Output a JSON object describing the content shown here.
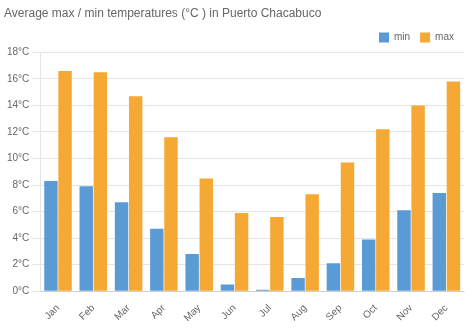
{
  "chart_data": {
    "type": "bar",
    "title": "Average max / min temperatures (°C ) in Puerto Chacabuco",
    "categories": [
      "Jan",
      "Feb",
      "Mar",
      "Apr",
      "May",
      "Jun",
      "Jul",
      "Aug",
      "Sep",
      "Oct",
      "Nov",
      "Dec"
    ],
    "series": [
      {
        "name": "min",
        "color": "#5b9bd5",
        "values": [
          8.3,
          7.9,
          6.7,
          4.7,
          2.8,
          0.5,
          0.1,
          1.0,
          2.1,
          3.9,
          6.1,
          7.4
        ]
      },
      {
        "name": "max",
        "color": "#f5a833",
        "values": [
          16.6,
          16.5,
          14.7,
          11.6,
          8.5,
          5.9,
          5.6,
          7.3,
          9.7,
          12.2,
          14.0,
          15.8
        ]
      }
    ],
    "ylim": [
      0,
      18
    ],
    "yticks": [
      {
        "value": 0,
        "label": "0°C"
      },
      {
        "value": 2,
        "label": "2°C"
      },
      {
        "value": 4,
        "label": "4°C"
      },
      {
        "value": 6,
        "label": "6°C"
      },
      {
        "value": 8,
        "label": "8°C"
      },
      {
        "value": 10,
        "label": "10°C"
      },
      {
        "value": 12,
        "label": "12°C"
      },
      {
        "value": 14,
        "label": "14°C"
      },
      {
        "value": 16,
        "label": "16°C"
      },
      {
        "value": 18,
        "label": "18°C"
      }
    ],
    "grid": true,
    "legend": "upper right"
  }
}
